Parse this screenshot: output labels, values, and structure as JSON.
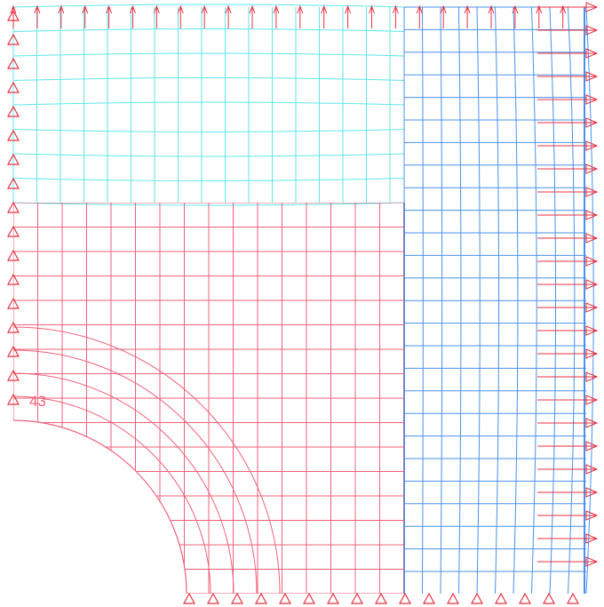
{
  "node_label": "43"
}
